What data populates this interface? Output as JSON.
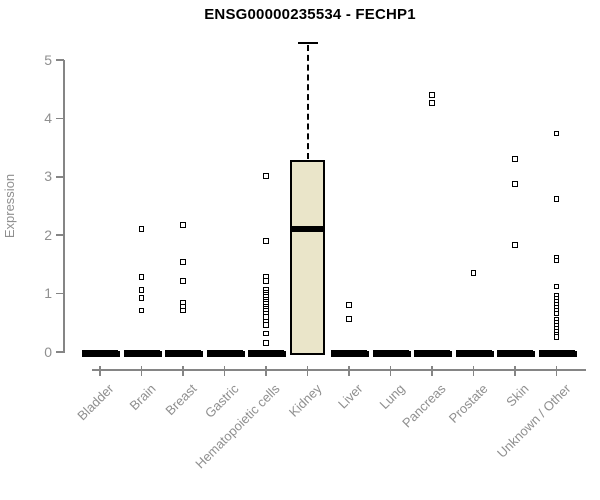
{
  "chart_data": {
    "type": "boxplot",
    "title": "ENSG00000235534 - FECHP1",
    "ylabel": "Expression",
    "xlabel": "",
    "ylim": [
      0,
      5
    ],
    "yticks": [
      0,
      1,
      2,
      3,
      4,
      5
    ],
    "grid": false,
    "legend": false,
    "categories": [
      "Bladder",
      "Brain",
      "Breast",
      "Gastric",
      "Hematopoietic cells",
      "Kidney",
      "Liver",
      "Lung",
      "Pancreas",
      "Prostate",
      "Skin",
      "Unknown / Other"
    ],
    "boxes": [
      {
        "category": "Bladder",
        "q1": 0,
        "median": 0,
        "q3": 0,
        "whisker_low": 0,
        "whisker_high": 0,
        "outliers": []
      },
      {
        "category": "Brain",
        "q1": 0,
        "median": 0,
        "q3": 0,
        "whisker_low": 0,
        "whisker_high": 0,
        "outliers": [
          2.11,
          1.28,
          1.06,
          0.92,
          0.71
        ]
      },
      {
        "category": "Breast",
        "q1": 0,
        "median": 0,
        "q3": 0,
        "whisker_low": 0,
        "whisker_high": 0,
        "outliers": [
          2.17,
          1.54,
          1.22,
          0.84,
          0.78,
          0.71
        ]
      },
      {
        "category": "Gastric",
        "q1": 0,
        "median": 0,
        "q3": 0,
        "whisker_low": 0,
        "whisker_high": 0,
        "outliers": []
      },
      {
        "category": "Hematopoietic cells",
        "q1": 0,
        "median": 0,
        "q3": 0,
        "whisker_low": 0,
        "whisker_high": 0,
        "outliers": [
          3.01,
          1.9,
          1.29,
          1.22,
          1.06,
          1.02,
          0.98,
          0.94,
          0.9,
          0.86,
          0.82,
          0.78,
          0.74,
          0.7,
          0.65,
          0.6,
          0.52,
          0.46,
          0.32,
          0.15
        ]
      },
      {
        "category": "Kidney",
        "q1": 0,
        "median": 2.11,
        "q3": 3.28,
        "whisker_low": 0,
        "whisker_high": 5.29,
        "outliers": []
      },
      {
        "category": "Liver",
        "q1": 0,
        "median": 0,
        "q3": 0,
        "whisker_low": 0,
        "whisker_high": 0,
        "outliers": [
          0.8,
          0.56
        ]
      },
      {
        "category": "Lung",
        "q1": 0,
        "median": 0,
        "q3": 0,
        "whisker_low": 0,
        "whisker_high": 0,
        "outliers": []
      },
      {
        "category": "Pancreas",
        "q1": 0,
        "median": 0,
        "q3": 0,
        "whisker_low": 0,
        "whisker_high": 0,
        "outliers": [
          4.4,
          4.26
        ]
      },
      {
        "category": "Prostate",
        "q1": 0,
        "median": 0,
        "q3": 0,
        "whisker_low": 0,
        "whisker_high": 0,
        "outliers": [
          1.35
        ]
      },
      {
        "category": "Skin",
        "q1": 0,
        "median": 0,
        "q3": 0,
        "whisker_low": 0,
        "whisker_high": 0,
        "outliers": [
          3.3,
          2.88,
          1.83
        ]
      },
      {
        "category": "Unknown / Other",
        "q1": 0,
        "median": 0,
        "q3": 0,
        "whisker_low": 0,
        "whisker_high": 0,
        "outliers": [
          3.74,
          2.62,
          1.62,
          1.57,
          1.12,
          0.96,
          0.91,
          0.86,
          0.81,
          0.76,
          0.71,
          0.66,
          0.55,
          0.5,
          0.45,
          0.4,
          0.35,
          0.3,
          0.26
        ]
      }
    ],
    "colors": {
      "box_fill": "#eae5c9",
      "box_border": "#000000",
      "median": "#000000",
      "point": "#000000",
      "axis": "#858585",
      "label": "#8f8f8f",
      "title": "#000000",
      "background": "#ffffff"
    }
  }
}
